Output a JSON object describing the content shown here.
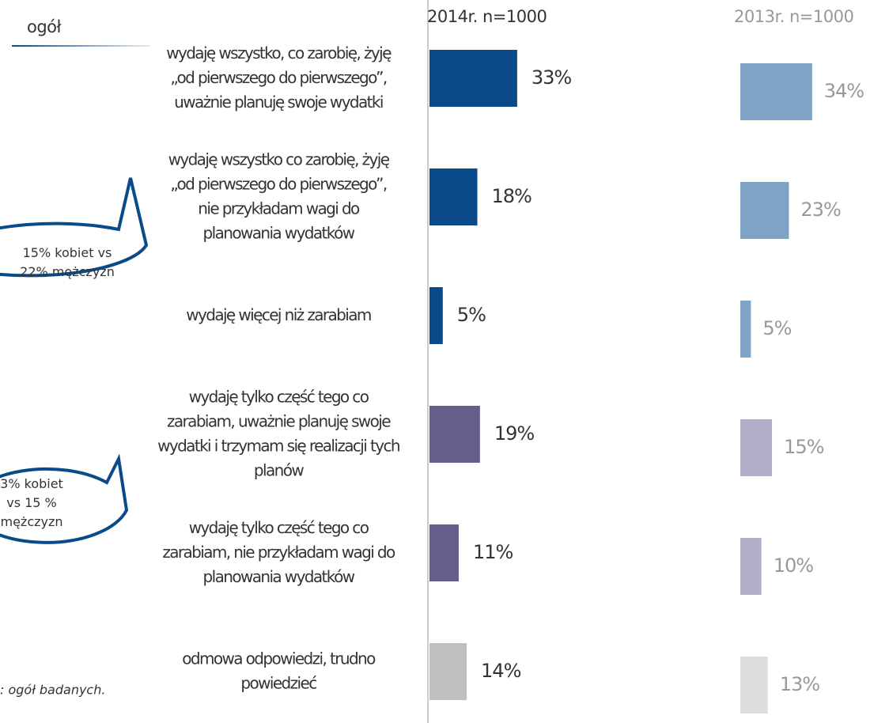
{
  "chart_data": {
    "type": "bar",
    "title": "ogół",
    "footnote": ": ogół badanych.",
    "categories": [
      [
        "wydaję wszystko, co zarobię, żyję",
        "„od pierwszego do pierwszego”,",
        "uważnie planuję swoje wydatki"
      ],
      [
        "wydaję wszystko co zarobię, żyję",
        "„od pierwszego do pierwszego”,",
        "nie przykładam wagi do",
        "planowania wydatków"
      ],
      [
        "wydaję więcej niż zarabiam"
      ],
      [
        "wydaję tylko część tego co",
        "zarabiam, uważnie planuję swoje",
        "wydatki i trzymam się realizacji tych",
        "planów"
      ],
      [
        "wydaję tylko część tego co",
        "zarabiam, nie przykładam wagi do",
        "planowania wydatków"
      ],
      [
        "odmowa odpowiedzi, trudno",
        "powiedzieć"
      ]
    ],
    "series": [
      {
        "name": "2014r. n=1000",
        "colors": [
          "#0b4a8a",
          "#0b4a8a",
          "#0b4a8a",
          "#635e8c",
          "#635e8c",
          "#bfbfbf"
        ],
        "values": [
          33,
          18,
          5,
          19,
          11,
          14
        ],
        "value_labels": [
          "33%",
          "18%",
          "5%",
          "19%",
          "11%",
          "14%"
        ]
      },
      {
        "name": "2013r. n=1000",
        "colors": [
          "#7fa3c4",
          "#7fa3c4",
          "#7fa3c4",
          "#b0aec8",
          "#b0aec8",
          "#dcdcdc"
        ],
        "values": [
          34,
          23,
          5,
          15,
          10,
          13
        ],
        "value_labels": [
          "34%",
          "23%",
          "5%",
          "15%",
          "10%",
          "13%"
        ]
      }
    ],
    "annotations": [
      [
        "15% kobiet vs",
        "22% mężczyzn"
      ],
      [
        "3% kobiet",
        "vs 15 %",
        "mężczyzn"
      ]
    ]
  }
}
